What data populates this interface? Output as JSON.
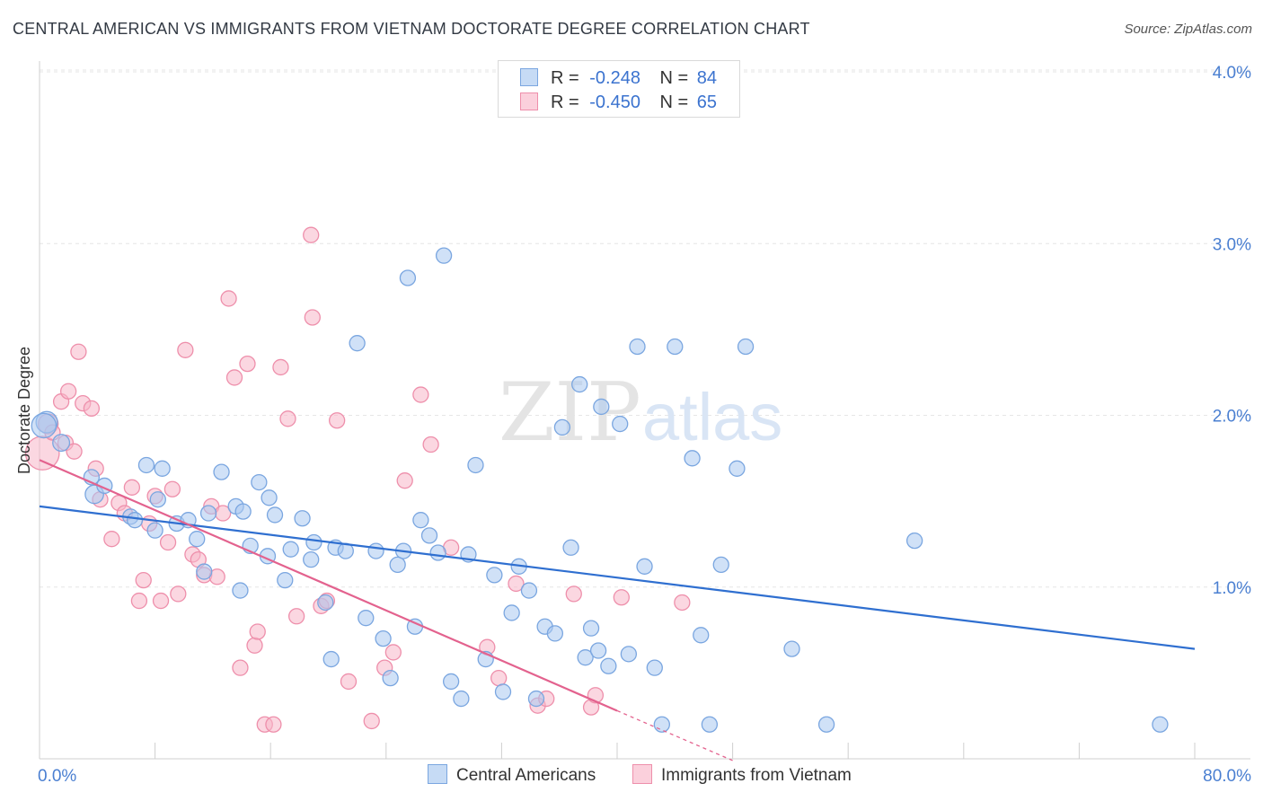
{
  "header": {
    "title": "CENTRAL AMERICAN VS IMMIGRANTS FROM VIETNAM DOCTORATE DEGREE CORRELATION CHART",
    "source": "Source: ZipAtlas.com"
  },
  "watermark": {
    "part1": "ZIP",
    "part2": "atlas"
  },
  "legend": {
    "rows": [
      {
        "r_label": "R =",
        "r_value": "-0.248",
        "n_label": "N =",
        "n_value": "84"
      },
      {
        "r_label": "R =",
        "r_value": "-0.450",
        "n_label": "N =",
        "n_value": "65"
      }
    ]
  },
  "bottom_legend": {
    "series1": "Central Americans",
    "series2": "Immigrants from Vietnam"
  },
  "colors": {
    "blue_fill": "#a9c8f0",
    "blue_stroke": "#7aa6e0",
    "blue_line": "#2f6fd0",
    "pink_fill": "#f7b6c8",
    "pink_stroke": "#ee8fab",
    "pink_line": "#e3628e",
    "tick_text": "#4a7fd1"
  },
  "chart_data": {
    "type": "scatter",
    "title": "CENTRAL AMERICAN VS IMMIGRANTS FROM VIETNAM DOCTORATE DEGREE CORRELATION CHART",
    "xlabel": "",
    "ylabel": "Doctorate Degree",
    "xlim": [
      0,
      80
    ],
    "ylim": [
      0,
      4.2
    ],
    "x_tick_labels": [
      "0.0%",
      "80.0%"
    ],
    "y_ticks": [
      1.0,
      2.0,
      3.0,
      4.0
    ],
    "y_tick_labels": [
      "1.0%",
      "2.0%",
      "3.0%",
      "4.0%"
    ],
    "grid": true,
    "legend_position": "top-center",
    "series": [
      {
        "name": "Central Americans",
        "R": -0.248,
        "N": 84,
        "trend": {
          "x": [
            0,
            80
          ],
          "y": [
            1.47,
            0.64
          ]
        },
        "points": [
          [
            0.5,
            1.96,
            1.4
          ],
          [
            0.3,
            1.94,
            1.6
          ],
          [
            1.5,
            1.84,
            1.1
          ],
          [
            3.6,
            1.64,
            1.0
          ],
          [
            3.8,
            1.54,
            1.2
          ],
          [
            4.5,
            1.59,
            1.0
          ],
          [
            6.3,
            1.41,
            1.0
          ],
          [
            6.6,
            1.39,
            1.0
          ],
          [
            7.4,
            1.71,
            1.0
          ],
          [
            8.2,
            1.51,
            1.0
          ],
          [
            8.5,
            1.69,
            1.0
          ],
          [
            8.0,
            1.33,
            1.0
          ],
          [
            9.5,
            1.37,
            1.0
          ],
          [
            10.3,
            1.39,
            1.0
          ],
          [
            10.9,
            1.28,
            1.0
          ],
          [
            11.4,
            1.09,
            1.0
          ],
          [
            11.7,
            1.43,
            1.0
          ],
          [
            12.6,
            1.67,
            1.0
          ],
          [
            13.6,
            1.47,
            1.0
          ],
          [
            14.1,
            1.44,
            1.0
          ],
          [
            14.6,
            1.24,
            1.0
          ],
          [
            15.2,
            1.61,
            1.0
          ],
          [
            15.9,
            1.52,
            1.0
          ],
          [
            16.3,
            1.42,
            1.0
          ],
          [
            13.9,
            0.98,
            1.0
          ],
          [
            15.8,
            1.18,
            1.0
          ],
          [
            17.0,
            1.04,
            1.0
          ],
          [
            17.4,
            1.22,
            1.0
          ],
          [
            18.2,
            1.4,
            1.0
          ],
          [
            18.8,
            1.16,
            1.0
          ],
          [
            19.0,
            1.26,
            1.0
          ],
          [
            19.8,
            0.91,
            1.0
          ],
          [
            20.5,
            1.23,
            1.0
          ],
          [
            20.2,
            0.58,
            1.0
          ],
          [
            21.2,
            1.21,
            1.0
          ],
          [
            22.0,
            2.42,
            1.0
          ],
          [
            22.6,
            0.82,
            1.0
          ],
          [
            23.3,
            1.21,
            1.0
          ],
          [
            23.8,
            0.7,
            1.0
          ],
          [
            24.3,
            0.47,
            1.0
          ],
          [
            24.8,
            1.13,
            1.0
          ],
          [
            25.2,
            1.21,
            1.0
          ],
          [
            25.5,
            2.8,
            1.0
          ],
          [
            26.0,
            0.77,
            1.0
          ],
          [
            26.4,
            1.39,
            1.0
          ],
          [
            27.0,
            1.3,
            1.0
          ],
          [
            27.6,
            1.2,
            1.0
          ],
          [
            28.0,
            2.93,
            1.0
          ],
          [
            28.5,
            0.45,
            1.0
          ],
          [
            29.2,
            0.35,
            1.0
          ],
          [
            29.7,
            1.19,
            1.0
          ],
          [
            30.2,
            1.71,
            1.0
          ],
          [
            30.9,
            0.58,
            1.0
          ],
          [
            31.5,
            1.07,
            1.0
          ],
          [
            32.1,
            0.39,
            1.0
          ],
          [
            32.7,
            0.85,
            1.0
          ],
          [
            33.2,
            1.12,
            1.0
          ],
          [
            33.9,
            0.98,
            1.0
          ],
          [
            34.4,
            0.35,
            1.0
          ],
          [
            35.0,
            0.77,
            1.0
          ],
          [
            35.7,
            0.73,
            1.0
          ],
          [
            36.2,
            1.93,
            1.0
          ],
          [
            36.8,
            1.23,
            1.0
          ],
          [
            37.4,
            2.18,
            1.0
          ],
          [
            37.8,
            0.59,
            1.0
          ],
          [
            38.2,
            0.76,
            1.0
          ],
          [
            38.7,
            0.63,
            1.0
          ],
          [
            38.9,
            2.05,
            1.0
          ],
          [
            39.4,
            0.54,
            1.0
          ],
          [
            40.2,
            1.95,
            1.0
          ],
          [
            40.8,
            0.61,
            1.0
          ],
          [
            41.4,
            2.4,
            1.0
          ],
          [
            41.9,
            1.12,
            1.0
          ],
          [
            42.6,
            0.53,
            1.0
          ],
          [
            43.1,
            0.2,
            1.0
          ],
          [
            44.0,
            2.4,
            1.0
          ],
          [
            45.2,
            1.75,
            1.0
          ],
          [
            45.8,
            0.72,
            1.0
          ],
          [
            46.4,
            0.2,
            1.0
          ],
          [
            47.2,
            1.13,
            1.0
          ],
          [
            48.3,
            1.69,
            1.0
          ],
          [
            48.9,
            2.4,
            1.0
          ],
          [
            52.1,
            0.64,
            1.0
          ],
          [
            54.5,
            0.2,
            1.0
          ],
          [
            60.6,
            1.27,
            1.0
          ],
          [
            77.6,
            0.2,
            1.0
          ]
        ]
      },
      {
        "name": "Immigrants from Vietnam",
        "R": -0.45,
        "N": 65,
        "trend": {
          "x": [
            0,
            40
          ],
          "y": [
            1.74,
            0.28
          ]
        },
        "trend_extension": {
          "x": [
            40,
            48
          ],
          "y": [
            0.28,
            -0.01
          ]
        },
        "points": [
          [
            0.2,
            1.78,
            2.2
          ],
          [
            0.6,
            1.95,
            1.3
          ],
          [
            0.9,
            1.9,
            1.0
          ],
          [
            1.5,
            2.08,
            1.0
          ],
          [
            1.8,
            1.84,
            1.0
          ],
          [
            2.0,
            2.14,
            1.0
          ],
          [
            2.4,
            1.79,
            1.0
          ],
          [
            2.7,
            2.37,
            1.0
          ],
          [
            3.0,
            2.07,
            1.0
          ],
          [
            3.6,
            2.04,
            1.0
          ],
          [
            3.9,
            1.69,
            1.0
          ],
          [
            4.2,
            1.51,
            1.0
          ],
          [
            5.0,
            1.28,
            1.0
          ],
          [
            5.5,
            1.49,
            1.0
          ],
          [
            5.9,
            1.43,
            1.0
          ],
          [
            6.4,
            1.58,
            1.0
          ],
          [
            6.9,
            0.92,
            1.0
          ],
          [
            7.2,
            1.04,
            1.0
          ],
          [
            7.6,
            1.37,
            1.0
          ],
          [
            8.0,
            1.53,
            1.0
          ],
          [
            8.4,
            0.92,
            1.0
          ],
          [
            8.9,
            1.26,
            1.0
          ],
          [
            9.2,
            1.57,
            1.0
          ],
          [
            9.6,
            0.96,
            1.0
          ],
          [
            10.1,
            2.38,
            1.0
          ],
          [
            10.6,
            1.19,
            1.0
          ],
          [
            11.0,
            1.16,
            1.0
          ],
          [
            11.4,
            1.07,
            1.0
          ],
          [
            11.9,
            1.47,
            1.0
          ],
          [
            12.3,
            1.06,
            1.0
          ],
          [
            12.7,
            1.43,
            1.0
          ],
          [
            13.1,
            2.68,
            1.0
          ],
          [
            13.5,
            2.22,
            1.0
          ],
          [
            13.9,
            0.53,
            1.0
          ],
          [
            14.4,
            2.3,
            1.0
          ],
          [
            14.9,
            0.66,
            1.0
          ],
          [
            15.1,
            0.74,
            1.0
          ],
          [
            15.6,
            0.2,
            1.0
          ],
          [
            16.2,
            0.2,
            1.0
          ],
          [
            16.7,
            2.28,
            1.0
          ],
          [
            17.2,
            1.98,
            1.0
          ],
          [
            17.8,
            0.83,
            1.0
          ],
          [
            18.8,
            3.05,
            1.0
          ],
          [
            18.9,
            2.57,
            1.0
          ],
          [
            19.5,
            0.89,
            1.0
          ],
          [
            19.9,
            0.92,
            1.0
          ],
          [
            20.6,
            1.97,
            1.0
          ],
          [
            21.4,
            0.45,
            1.0
          ],
          [
            23.0,
            0.22,
            1.0
          ],
          [
            23.9,
            0.53,
            1.0
          ],
          [
            24.5,
            0.62,
            1.0
          ],
          [
            25.3,
            1.62,
            1.0
          ],
          [
            26.4,
            2.12,
            1.0
          ],
          [
            27.1,
            1.83,
            1.0
          ],
          [
            28.5,
            1.23,
            1.0
          ],
          [
            31.0,
            0.65,
            1.0
          ],
          [
            31.8,
            0.47,
            1.0
          ],
          [
            33.0,
            1.02,
            1.0
          ],
          [
            34.5,
            0.31,
            1.0
          ],
          [
            35.1,
            0.35,
            1.0
          ],
          [
            37.0,
            0.96,
            1.0
          ],
          [
            38.2,
            0.3,
            1.0
          ],
          [
            38.5,
            0.37,
            1.0
          ],
          [
            40.3,
            0.94,
            1.0
          ],
          [
            44.5,
            0.91,
            1.0
          ]
        ]
      }
    ]
  }
}
